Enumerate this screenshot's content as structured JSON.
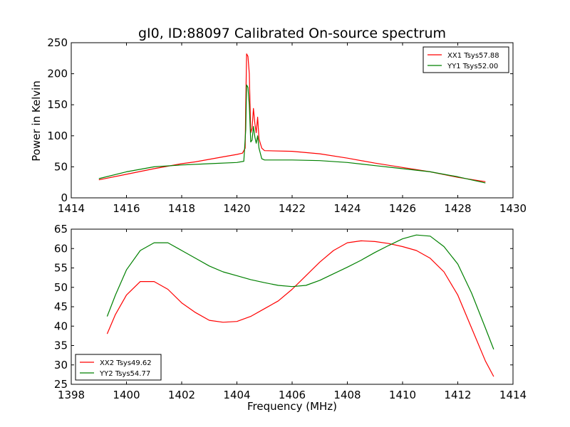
{
  "title": "gI0, ID:88097 Calibrated On-source spectrum",
  "colors": {
    "xx": "#ff0000",
    "yy": "#008000"
  },
  "chart_data": [
    {
      "type": "line",
      "ylabel": "Power in Kelvin",
      "xlim": [
        1414,
        1430
      ],
      "ylim": [
        0,
        250
      ],
      "xticks": [
        1414,
        1416,
        1418,
        1420,
        1422,
        1424,
        1426,
        1428,
        1430
      ],
      "yticks": [
        0,
        50,
        100,
        150,
        200,
        250
      ],
      "legend": "top-right",
      "series": [
        {
          "name": "XX1 Tsys57.88",
          "color": "#ff0000",
          "points": [
            [
              1415,
              29
            ],
            [
              1416,
              38
            ],
            [
              1417,
              47
            ],
            [
              1418,
              55
            ],
            [
              1418.5,
              58
            ],
            [
              1419,
              62
            ],
            [
              1419.5,
              66
            ],
            [
              1420,
              70
            ],
            [
              1420.2,
              72
            ],
            [
              1420.3,
              80
            ],
            [
              1420.32,
              150
            ],
            [
              1420.35,
              232
            ],
            [
              1420.4,
              228
            ],
            [
              1420.45,
              200
            ],
            [
              1420.5,
              105
            ],
            [
              1420.55,
              112
            ],
            [
              1420.6,
              144
            ],
            [
              1420.65,
              120
            ],
            [
              1420.7,
              105
            ],
            [
              1420.75,
              130
            ],
            [
              1420.8,
              95
            ],
            [
              1420.9,
              80
            ],
            [
              1421,
              76
            ],
            [
              1422,
              75
            ],
            [
              1423,
              71
            ],
            [
              1424,
              64
            ],
            [
              1425,
              56
            ],
            [
              1426,
              49
            ],
            [
              1427,
              42
            ],
            [
              1428,
              33
            ],
            [
              1429,
              26
            ]
          ]
        },
        {
          "name": "YY1 Tsys52.00",
          "color": "#008000",
          "points": [
            [
              1415,
              31
            ],
            [
              1416,
              42
            ],
            [
              1417,
              50
            ],
            [
              1418,
              53
            ],
            [
              1419,
              55
            ],
            [
              1420,
              57
            ],
            [
              1420.25,
              59
            ],
            [
              1420.32,
              110
            ],
            [
              1420.35,
              182
            ],
            [
              1420.4,
              178
            ],
            [
              1420.45,
              150
            ],
            [
              1420.5,
              90
            ],
            [
              1420.55,
              93
            ],
            [
              1420.6,
              115
            ],
            [
              1420.65,
              98
            ],
            [
              1420.7,
              88
            ],
            [
              1420.75,
              100
            ],
            [
              1420.8,
              80
            ],
            [
              1420.9,
              63
            ],
            [
              1421,
              61
            ],
            [
              1422,
              61
            ],
            [
              1423,
              60
            ],
            [
              1424,
              57
            ],
            [
              1425,
              52
            ],
            [
              1426,
              47
            ],
            [
              1427,
              42
            ],
            [
              1428,
              34
            ],
            [
              1429,
              24
            ]
          ]
        }
      ]
    },
    {
      "type": "line",
      "xlabel": "Frequency (MHz)",
      "xlim": [
        1398,
        1414
      ],
      "ylim": [
        25,
        65
      ],
      "xticks": [
        1398,
        1400,
        1402,
        1404,
        1406,
        1408,
        1410,
        1412,
        1414
      ],
      "yticks": [
        25,
        30,
        35,
        40,
        45,
        50,
        55,
        60,
        65
      ],
      "legend": "bottom-left",
      "series": [
        {
          "name": "XX2 Tsys49.62",
          "color": "#ff0000",
          "points": [
            [
              1399.3,
              38
            ],
            [
              1399.6,
              43
            ],
            [
              1400,
              48
            ],
            [
              1400.5,
              51.5
            ],
            [
              1401,
              51.5
            ],
            [
              1401.5,
              49.5
            ],
            [
              1402,
              46
            ],
            [
              1402.5,
              43.5
            ],
            [
              1403,
              41.5
            ],
            [
              1403.5,
              41
            ],
            [
              1404,
              41.2
            ],
            [
              1404.5,
              42.5
            ],
            [
              1405,
              44.5
            ],
            [
              1405.5,
              46.5
            ],
            [
              1406,
              49.5
            ],
            [
              1406.5,
              53
            ],
            [
              1407,
              56.5
            ],
            [
              1407.5,
              59.5
            ],
            [
              1408,
              61.5
            ],
            [
              1408.5,
              62
            ],
            [
              1409,
              61.8
            ],
            [
              1409.5,
              61.3
            ],
            [
              1410,
              60.5
            ],
            [
              1410.5,
              59.5
            ],
            [
              1411,
              57.5
            ],
            [
              1411.5,
              54
            ],
            [
              1412,
              48
            ],
            [
              1412.5,
              39.5
            ],
            [
              1413,
              31
            ],
            [
              1413.3,
              27
            ]
          ]
        },
        {
          "name": "YY2 Tsys54.77",
          "color": "#008000",
          "points": [
            [
              1399.3,
              42.5
            ],
            [
              1399.6,
              48
            ],
            [
              1400,
              54.5
            ],
            [
              1400.5,
              59.5
            ],
            [
              1401,
              61.5
            ],
            [
              1401.5,
              61.5
            ],
            [
              1402,
              59.5
            ],
            [
              1402.5,
              57.5
            ],
            [
              1403,
              55.5
            ],
            [
              1403.5,
              54
            ],
            [
              1404,
              53
            ],
            [
              1404.5,
              52
            ],
            [
              1405,
              51.2
            ],
            [
              1405.5,
              50.5
            ],
            [
              1406,
              50.2
            ],
            [
              1406.5,
              50.5
            ],
            [
              1407,
              51.8
            ],
            [
              1407.5,
              53.5
            ],
            [
              1408,
              55.2
            ],
            [
              1408.5,
              57
            ],
            [
              1409,
              59
            ],
            [
              1409.5,
              60.8
            ],
            [
              1410,
              62.5
            ],
            [
              1410.5,
              63.5
            ],
            [
              1411,
              63.2
            ],
            [
              1411.5,
              60.5
            ],
            [
              1412,
              56
            ],
            [
              1412.5,
              48.5
            ],
            [
              1413,
              39.5
            ],
            [
              1413.3,
              34
            ]
          ]
        }
      ]
    }
  ]
}
